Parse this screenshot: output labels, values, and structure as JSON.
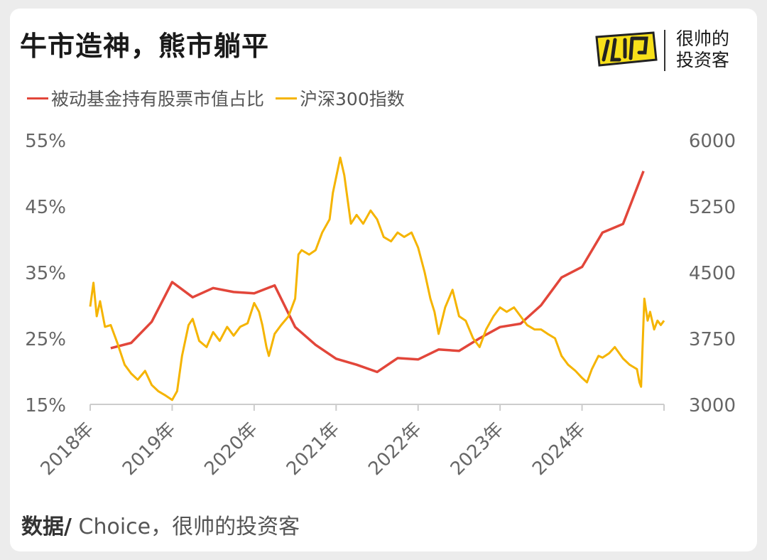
{
  "title": "牛市造神，熊市躺平",
  "logo": {
    "line1": "很帅的",
    "line2": "投资客",
    "mark_icon": "shuai-logo-icon"
  },
  "source": {
    "prefix": "数据/",
    "text": " Choice，很帅的投资客"
  },
  "colors": {
    "passive": "#e2463a",
    "index": "#f5b400",
    "axis": "#cccccc",
    "text": "#666666"
  },
  "chart_data": {
    "type": "line",
    "title": "",
    "x_tick_labels": [
      "2018年",
      "2019年",
      "2020年",
      "2021年",
      "2022年",
      "2023年",
      "2024年"
    ],
    "xlim": [
      2018.0,
      2025.0
    ],
    "y_left": {
      "ticks": [
        "55%",
        "45%",
        "35%",
        "25%",
        "15%"
      ],
      "lim": [
        15,
        55
      ],
      "unit": "%"
    },
    "y_right": {
      "ticks": [
        "6000",
        "5250",
        "4500",
        "3750",
        "3000"
      ],
      "lim": [
        3000,
        6000
      ]
    },
    "legend_position": "top-left",
    "grid": false,
    "series": [
      {
        "name": "被动基金持有股票市值占比",
        "axis": "left",
        "color": "#e2463a",
        "points": [
          [
            2018.25,
            23.5
          ],
          [
            2018.5,
            24.3
          ],
          [
            2018.75,
            27.5
          ],
          [
            2019.0,
            33.5
          ],
          [
            2019.25,
            31.2
          ],
          [
            2019.5,
            32.6
          ],
          [
            2019.75,
            32.0
          ],
          [
            2020.0,
            31.8
          ],
          [
            2020.25,
            33.0
          ],
          [
            2020.5,
            26.7
          ],
          [
            2020.75,
            24.0
          ],
          [
            2021.0,
            21.9
          ],
          [
            2021.25,
            21.0
          ],
          [
            2021.5,
            19.9
          ],
          [
            2021.75,
            22.0
          ],
          [
            2022.0,
            21.8
          ],
          [
            2022.25,
            23.3
          ],
          [
            2022.5,
            23.1
          ],
          [
            2022.75,
            25.0
          ],
          [
            2023.0,
            26.7
          ],
          [
            2023.25,
            27.2
          ],
          [
            2023.5,
            30.0
          ],
          [
            2023.75,
            34.2
          ],
          [
            2024.0,
            35.8
          ],
          [
            2024.25,
            41.0
          ],
          [
            2024.5,
            42.3
          ],
          [
            2024.75,
            50.3
          ]
        ]
      },
      {
        "name": "沪深300指数",
        "axis": "right",
        "color": "#f5b400",
        "points": [
          [
            2018.0,
            4110
          ],
          [
            2018.04,
            4380
          ],
          [
            2018.08,
            4000
          ],
          [
            2018.12,
            4170
          ],
          [
            2018.18,
            3880
          ],
          [
            2018.25,
            3900
          ],
          [
            2018.33,
            3700
          ],
          [
            2018.42,
            3450
          ],
          [
            2018.5,
            3350
          ],
          [
            2018.58,
            3280
          ],
          [
            2018.67,
            3380
          ],
          [
            2018.75,
            3220
          ],
          [
            2018.83,
            3150
          ],
          [
            2018.92,
            3100
          ],
          [
            2019.0,
            3050
          ],
          [
            2019.06,
            3150
          ],
          [
            2019.12,
            3550
          ],
          [
            2019.2,
            3900
          ],
          [
            2019.25,
            3970
          ],
          [
            2019.33,
            3720
          ],
          [
            2019.42,
            3650
          ],
          [
            2019.5,
            3820
          ],
          [
            2019.58,
            3720
          ],
          [
            2019.67,
            3880
          ],
          [
            2019.75,
            3780
          ],
          [
            2019.83,
            3880
          ],
          [
            2019.92,
            3920
          ],
          [
            2020.0,
            4150
          ],
          [
            2020.06,
            4050
          ],
          [
            2020.1,
            3900
          ],
          [
            2020.15,
            3650
          ],
          [
            2020.18,
            3550
          ],
          [
            2020.25,
            3800
          ],
          [
            2020.33,
            3900
          ],
          [
            2020.42,
            4000
          ],
          [
            2020.5,
            4200
          ],
          [
            2020.54,
            4700
          ],
          [
            2020.58,
            4750
          ],
          [
            2020.67,
            4700
          ],
          [
            2020.75,
            4750
          ],
          [
            2020.83,
            4950
          ],
          [
            2020.92,
            5100
          ],
          [
            2020.96,
            5400
          ],
          [
            2021.05,
            5800
          ],
          [
            2021.1,
            5600
          ],
          [
            2021.18,
            5050
          ],
          [
            2021.25,
            5150
          ],
          [
            2021.33,
            5050
          ],
          [
            2021.42,
            5200
          ],
          [
            2021.5,
            5100
          ],
          [
            2021.58,
            4900
          ],
          [
            2021.67,
            4850
          ],
          [
            2021.75,
            4950
          ],
          [
            2021.83,
            4900
          ],
          [
            2021.92,
            4950
          ],
          [
            2022.0,
            4780
          ],
          [
            2022.08,
            4500
          ],
          [
            2022.15,
            4200
          ],
          [
            2022.2,
            4050
          ],
          [
            2022.25,
            3800
          ],
          [
            2022.33,
            4100
          ],
          [
            2022.42,
            4300
          ],
          [
            2022.5,
            4000
          ],
          [
            2022.58,
            3950
          ],
          [
            2022.67,
            3750
          ],
          [
            2022.75,
            3650
          ],
          [
            2022.83,
            3850
          ],
          [
            2022.92,
            4000
          ],
          [
            2023.0,
            4100
          ],
          [
            2023.08,
            4050
          ],
          [
            2023.17,
            4100
          ],
          [
            2023.25,
            4000
          ],
          [
            2023.33,
            3900
          ],
          [
            2023.42,
            3850
          ],
          [
            2023.5,
            3850
          ],
          [
            2023.58,
            3800
          ],
          [
            2023.67,
            3750
          ],
          [
            2023.75,
            3550
          ],
          [
            2023.83,
            3450
          ],
          [
            2023.92,
            3380
          ],
          [
            2024.0,
            3300
          ],
          [
            2024.06,
            3250
          ],
          [
            2024.12,
            3400
          ],
          [
            2024.2,
            3550
          ],
          [
            2024.25,
            3530
          ],
          [
            2024.33,
            3580
          ],
          [
            2024.4,
            3650
          ],
          [
            2024.5,
            3520
          ],
          [
            2024.58,
            3450
          ],
          [
            2024.67,
            3400
          ],
          [
            2024.7,
            3250
          ],
          [
            2024.72,
            3200
          ],
          [
            2024.76,
            4200
          ],
          [
            2024.8,
            3950
          ],
          [
            2024.83,
            4050
          ],
          [
            2024.88,
            3850
          ],
          [
            2024.92,
            3950
          ],
          [
            2024.96,
            3900
          ],
          [
            2025.0,
            3950
          ]
        ]
      }
    ]
  }
}
